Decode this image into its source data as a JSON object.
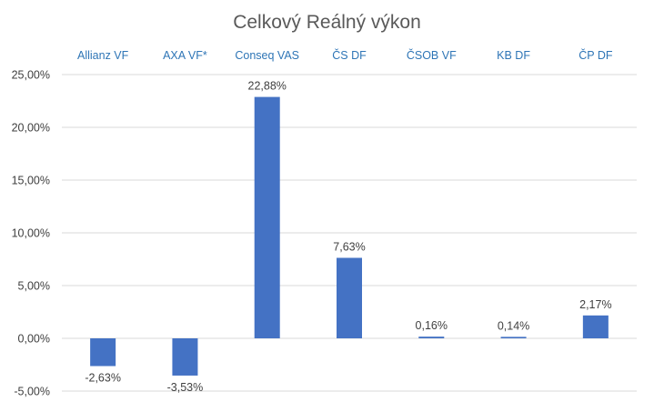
{
  "chart_data": {
    "type": "bar",
    "title": "Celkový Reálný výkon",
    "xlabel": "",
    "ylabel": "",
    "categories": [
      "Allianz VF",
      "AXA VF*",
      "Conseq VAS",
      "ČS DF",
      "ČSOB VF",
      "KB DF",
      "ČP DF"
    ],
    "values": [
      -2.63,
      -3.53,
      22.88,
      7.63,
      0.16,
      0.14,
      2.17
    ],
    "value_labels": [
      "-2,63%",
      "-3,53%",
      "22,88%",
      "7,63%",
      "0,16%",
      "0,14%",
      "2,17%"
    ],
    "y_ticks": [
      {
        "value": 25,
        "label": "25,00%"
      },
      {
        "value": 20,
        "label": "20,00%"
      },
      {
        "value": 15,
        "label": "15,00%"
      },
      {
        "value": 10,
        "label": "10,00%"
      },
      {
        "value": 5,
        "label": "5,00%"
      },
      {
        "value": 0,
        "label": "0,00%"
      },
      {
        "value": -5,
        "label": "-5,00%"
      }
    ],
    "ylim": [
      -5,
      25
    ],
    "grid": true,
    "category_axis_position": "top",
    "colors": {
      "bar": "#4472C4",
      "category_label": "#2E75B6",
      "gridline": "#D9D9D9",
      "text": "#404040",
      "title": "#595959"
    }
  }
}
